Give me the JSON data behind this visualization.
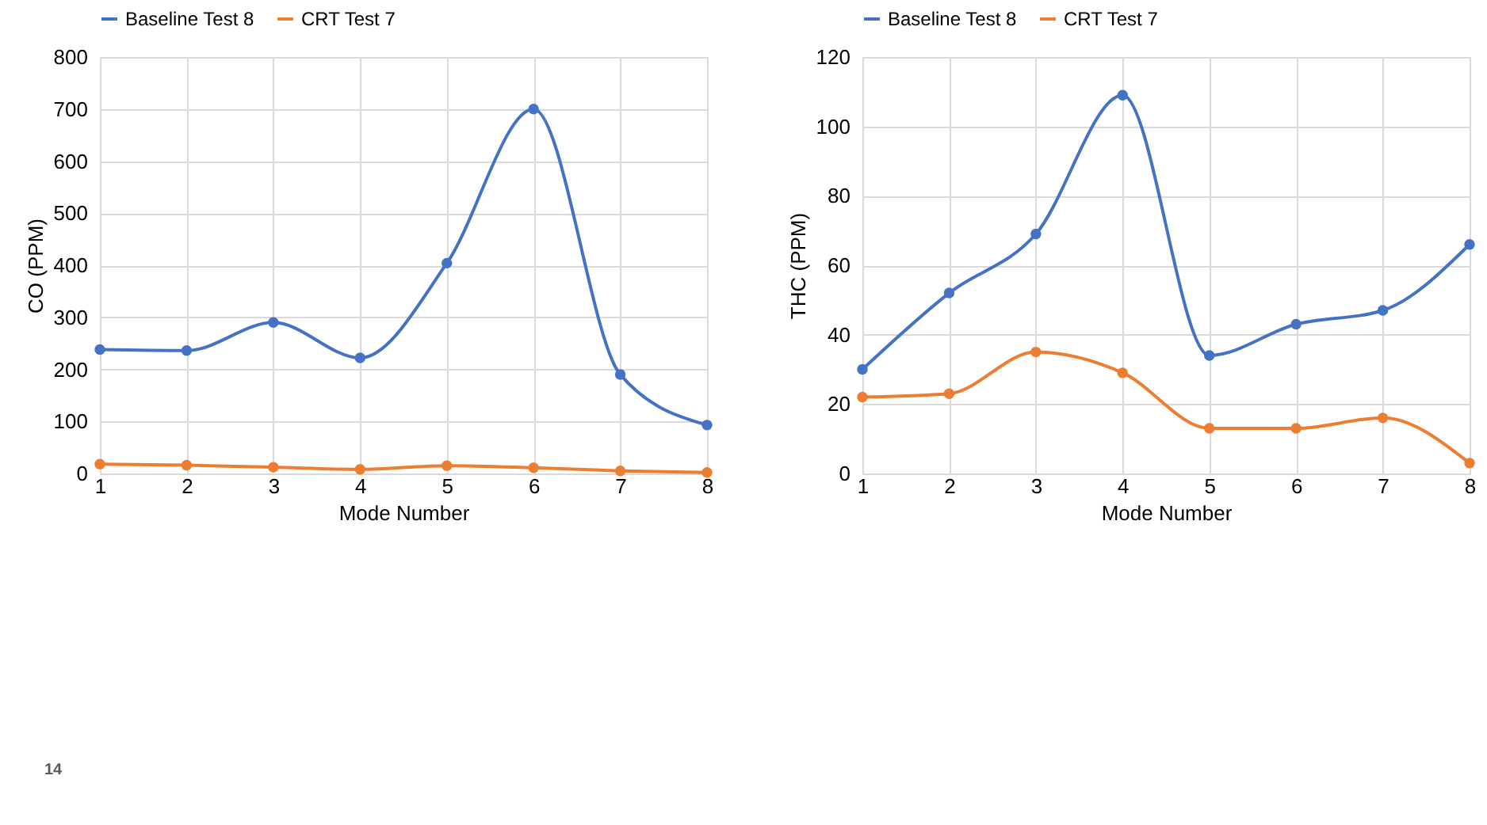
{
  "chart_data": [
    {
      "type": "line",
      "xlabel": "Mode Number",
      "ylabel": "CO (PPM)",
      "x": [
        1,
        2,
        3,
        4,
        5,
        6,
        7,
        8
      ],
      "xlim": [
        1,
        8
      ],
      "xticks": [
        1,
        2,
        3,
        4,
        5,
        6,
        7,
        8
      ],
      "ylim": [
        0,
        800
      ],
      "yticks": [
        0,
        100,
        200,
        300,
        400,
        500,
        600,
        700,
        800
      ],
      "grid": true,
      "legend": "top",
      "marker": "circle",
      "line_style": "solid",
      "annotations": [
        "14"
      ],
      "series": [
        {
          "name": "Baseline Test 8",
          "color": "#4472c4",
          "values": [
            238,
            236,
            290,
            222,
            404,
            700,
            190,
            93
          ]
        },
        {
          "name": "CRT Test 7",
          "color": "#ed7d31",
          "values": [
            18,
            16,
            12,
            8,
            15,
            11,
            5,
            2
          ]
        }
      ]
    },
    {
      "type": "line",
      "xlabel": "Mode Number",
      "ylabel": "THC (PPM)",
      "x": [
        1,
        2,
        3,
        4,
        5,
        6,
        7,
        8
      ],
      "xlim": [
        1,
        8
      ],
      "xticks": [
        1,
        2,
        3,
        4,
        5,
        6,
        7,
        8
      ],
      "ylim": [
        0,
        120
      ],
      "yticks": [
        0,
        20,
        40,
        60,
        80,
        100,
        120
      ],
      "grid": true,
      "legend": "top",
      "marker": "circle",
      "line_style": "solid",
      "series": [
        {
          "name": "Baseline Test 8",
          "color": "#4472c4",
          "values": [
            30,
            52,
            69,
            109,
            34,
            43,
            47,
            66
          ]
        },
        {
          "name": "CRT Test 7",
          "color": "#ed7d31",
          "values": [
            22,
            23,
            35,
            29,
            13,
            13,
            16,
            3
          ]
        }
      ]
    }
  ]
}
